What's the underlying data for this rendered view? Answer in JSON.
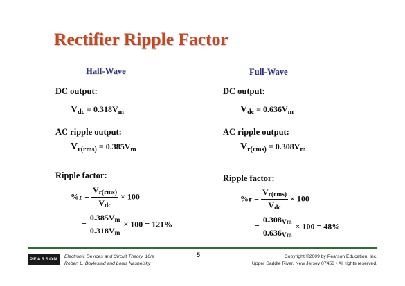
{
  "title": "Rectifier Ripple Factor",
  "half_wave": {
    "heading": "Half-Wave",
    "dc_label": "DC output:",
    "dc_lhs": "V",
    "dc_lhs_sub": "dc",
    "dc_rhs": "= 0.318V",
    "dc_rhs_sub": "m",
    "ac_label": "AC ripple output:",
    "ac_lhs": "V",
    "ac_lhs_sub": "r(rms)",
    "ac_rhs": "= 0.385V",
    "ac_rhs_sub": "m",
    "rf_label": "Ripple factor:",
    "rf_lhs": "%r =",
    "rf_num": "V",
    "rf_num_sub": "r(rms)",
    "rf_den": "V",
    "rf_den_sub": "dc",
    "rf_times": "× 100",
    "rf2_eq": "=",
    "rf2_num": "0.385V",
    "rf2_num_sub": "m",
    "rf2_den": "0.318V",
    "rf2_den_sub": "m",
    "rf2_result": "× 100 = 121%"
  },
  "full_wave": {
    "heading": "Full-Wave",
    "dc_label": "DC output:",
    "dc_lhs": "V",
    "dc_lhs_sub": "dc",
    "dc_rhs": "= 0.636V",
    "dc_rhs_sub": "m",
    "ac_label": "AC ripple output:",
    "ac_lhs": "V",
    "ac_lhs_sub": "r(rms)",
    "ac_rhs": "= 0.308V",
    "ac_rhs_sub": "m",
    "rf_label": "Ripple factor:",
    "rf_lhs": "%r =",
    "rf_num": "V",
    "rf_num_sub": "r(rms)",
    "rf_den": "V",
    "rf_den_sub": "dc",
    "rf_times": "× 100",
    "rf2_eq": "=",
    "rf2_num": "0.308",
    "rf2_num_sub": "Vm",
    "rf2_den": "0.636",
    "rf2_den_sub": "Vm",
    "rf2_result": "× 100 = 48%"
  },
  "footer": {
    "logo": "PEARSON",
    "book_line1": "Electronic Devices and Circuit Theory, 10/e",
    "book_line2": "Robert L. Boylestad and Louis Nashelsky",
    "page_number": "5",
    "copyright_line1": "Copyright ©2009 by Pearson Education, Inc.",
    "copyright_line2": "Upper Saddle River, New Jersey 07458 • All rights reserved."
  },
  "colors": {
    "title": "#c8461f",
    "column_heading": "#2e2e8c",
    "divider": "#2d6e2d"
  }
}
